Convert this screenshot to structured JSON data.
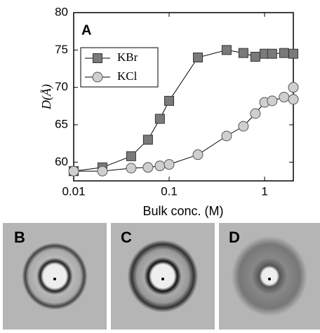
{
  "chart_data": {
    "type": "line",
    "annotation": "A",
    "xlabel": "Bulk conc. (M)",
    "ylabel": "D(Å)",
    "xscale": "log",
    "xlim": [
      0.01,
      2
    ],
    "xticks": [
      0.01,
      0.1,
      1
    ],
    "ylim": [
      57.5,
      80
    ],
    "yticks": [
      60,
      65,
      70,
      75,
      80
    ],
    "legend": "upper left",
    "series": [
      {
        "name": "KBr",
        "color": "#7a7a7a",
        "marker": "square",
        "x": [
          0.01,
          0.02,
          0.04,
          0.06,
          0.08,
          0.1,
          0.2,
          0.4,
          0.6,
          0.8,
          1.0,
          1.2,
          1.6,
          2.0
        ],
        "values": [
          58.8,
          59.3,
          60.8,
          63,
          65.8,
          68.2,
          74,
          75,
          74.6,
          74.1,
          74.5,
          74.5,
          74.6,
          74.5
        ]
      },
      {
        "name": "KCl",
        "color": "#cfcfcf",
        "marker": "circle",
        "x": [
          0.01,
          0.02,
          0.04,
          0.06,
          0.08,
          0.1,
          0.2,
          0.4,
          0.6,
          0.8,
          1.0,
          1.2,
          1.6,
          2.0,
          2.0
        ],
        "values": [
          58.8,
          58.8,
          59.2,
          59.3,
          59.5,
          59.7,
          61,
          63.5,
          64.8,
          66.5,
          68,
          68.2,
          68.7,
          68.4,
          70
        ]
      }
    ],
    "panel_labels": [
      "B",
      "C",
      "D"
    ]
  }
}
